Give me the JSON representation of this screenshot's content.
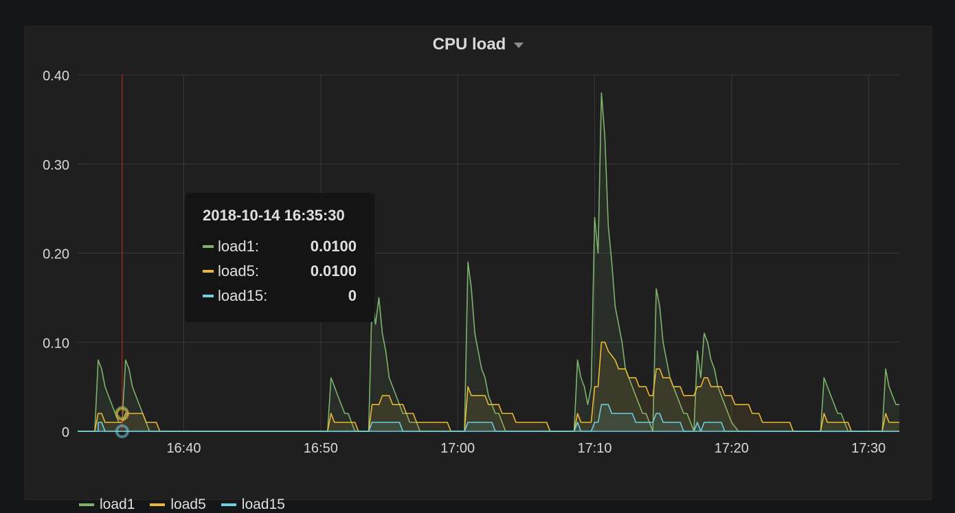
{
  "panel": {
    "title": "CPU load"
  },
  "tooltip": {
    "time": "2018-10-14 16:35:30",
    "rows": [
      {
        "name": "load1:",
        "value": "0.0100",
        "color": "#7eb26d"
      },
      {
        "name": "load5:",
        "value": "0.0100",
        "color": "#eab839"
      },
      {
        "name": "load15:",
        "value": "0",
        "color": "#6ed0e0"
      }
    ]
  },
  "legend": [
    {
      "label": "load1",
      "color": "#7eb26d"
    },
    {
      "label": "load5",
      "color": "#eab839"
    },
    {
      "label": "load15",
      "color": "#6ed0e0"
    }
  ],
  "chart_data": {
    "type": "area",
    "title": "CPU load",
    "xlabel": "",
    "ylabel": "",
    "x_unit": "minutes after 16:00 (2018-10-14)",
    "xlim": [
      32.25,
      92.25
    ],
    "ylim": [
      0,
      0.4
    ],
    "y_ticks": [
      {
        "value": 0,
        "label": "0"
      },
      {
        "value": 0.1,
        "label": "0.10"
      },
      {
        "value": 0.2,
        "label": "0.20"
      },
      {
        "value": 0.3,
        "label": "0.30"
      },
      {
        "value": 0.4,
        "label": "0.40"
      }
    ],
    "x_ticks": [
      {
        "value": 40,
        "label": "16:40"
      },
      {
        "value": 50,
        "label": "16:50"
      },
      {
        "value": 60,
        "label": "17:00"
      },
      {
        "value": 70,
        "label": "17:10"
      },
      {
        "value": 80,
        "label": "17:20"
      },
      {
        "value": 90,
        "label": "17:30"
      }
    ],
    "grid": true,
    "legend_position": "bottom-left",
    "crosshair_x": 35.5,
    "series": [
      {
        "name": "load1",
        "color": "#7eb26d",
        "points": [
          [
            32.25,
            0
          ],
          [
            33.5,
            0
          ],
          [
            33.75,
            0.08
          ],
          [
            34,
            0.07
          ],
          [
            34.25,
            0.05
          ],
          [
            34.5,
            0.04
          ],
          [
            34.75,
            0.03
          ],
          [
            35,
            0.02
          ],
          [
            35.25,
            0.01
          ],
          [
            35.5,
            0.01
          ],
          [
            35.75,
            0.08
          ],
          [
            36,
            0.07
          ],
          [
            36.25,
            0.05
          ],
          [
            36.5,
            0.04
          ],
          [
            36.75,
            0.03
          ],
          [
            37,
            0.02
          ],
          [
            37.25,
            0.01
          ],
          [
            37.5,
            0
          ],
          [
            50.5,
            0
          ],
          [
            50.75,
            0.06
          ],
          [
            51,
            0.05
          ],
          [
            51.25,
            0.04
          ],
          [
            51.5,
            0.03
          ],
          [
            51.75,
            0.02
          ],
          [
            52,
            0.02
          ],
          [
            52.25,
            0.01
          ],
          [
            52.5,
            0
          ],
          [
            53.5,
            0
          ],
          [
            53.75,
            0.15
          ],
          [
            54,
            0.12
          ],
          [
            54.25,
            0.15
          ],
          [
            54.5,
            0.11
          ],
          [
            54.75,
            0.09
          ],
          [
            55,
            0.06
          ],
          [
            55.25,
            0.05
          ],
          [
            55.5,
            0.04
          ],
          [
            55.75,
            0.03
          ],
          [
            56,
            0.02
          ],
          [
            56.25,
            0.02
          ],
          [
            56.5,
            0.01
          ],
          [
            57,
            0.01
          ],
          [
            57.25,
            0
          ],
          [
            60.5,
            0
          ],
          [
            60.75,
            0.19
          ],
          [
            61,
            0.16
          ],
          [
            61.25,
            0.11
          ],
          [
            61.5,
            0.09
          ],
          [
            61.75,
            0.07
          ],
          [
            62,
            0.06
          ],
          [
            62.25,
            0.04
          ],
          [
            62.5,
            0.03
          ],
          [
            62.75,
            0.02
          ],
          [
            63,
            0.02
          ],
          [
            63.25,
            0.01
          ],
          [
            63.5,
            0
          ],
          [
            68.5,
            0
          ],
          [
            68.75,
            0.08
          ],
          [
            69,
            0.06
          ],
          [
            69.25,
            0.05
          ],
          [
            69.5,
            0.03
          ],
          [
            69.75,
            0.05
          ],
          [
            70,
            0.24
          ],
          [
            70.25,
            0.2
          ],
          [
            70.5,
            0.38
          ],
          [
            70.75,
            0.33
          ],
          [
            71,
            0.23
          ],
          [
            71.25,
            0.19
          ],
          [
            71.5,
            0.14
          ],
          [
            71.75,
            0.12
          ],
          [
            72,
            0.1
          ],
          [
            72.25,
            0.07
          ],
          [
            72.5,
            0.06
          ],
          [
            72.75,
            0.05
          ],
          [
            73,
            0.04
          ],
          [
            73.25,
            0.03
          ],
          [
            73.5,
            0.02
          ],
          [
            73.75,
            0.02
          ],
          [
            74,
            0.01
          ],
          [
            74.25,
            0
          ],
          [
            74.5,
            0.16
          ],
          [
            74.75,
            0.14
          ],
          [
            75,
            0.1
          ],
          [
            75.25,
            0.08
          ],
          [
            75.5,
            0.06
          ],
          [
            75.75,
            0.05
          ],
          [
            76,
            0.04
          ],
          [
            76.25,
            0.03
          ],
          [
            76.5,
            0.02
          ],
          [
            76.75,
            0.02
          ],
          [
            77,
            0.01
          ],
          [
            77.25,
            0
          ],
          [
            77.5,
            0.09
          ],
          [
            77.75,
            0.06
          ],
          [
            78,
            0.11
          ],
          [
            78.25,
            0.1
          ],
          [
            78.5,
            0.08
          ],
          [
            78.75,
            0.07
          ],
          [
            79,
            0.05
          ],
          [
            79.25,
            0.04
          ],
          [
            79.5,
            0.03
          ],
          [
            79.75,
            0.02
          ],
          [
            80,
            0.01
          ],
          [
            80.5,
            0
          ],
          [
            86.5,
            0
          ],
          [
            86.75,
            0.06
          ],
          [
            87,
            0.05
          ],
          [
            87.25,
            0.04
          ],
          [
            87.5,
            0.03
          ],
          [
            87.75,
            0.02
          ],
          [
            88,
            0.02
          ],
          [
            88.25,
            0.01
          ],
          [
            88.5,
            0
          ],
          [
            91,
            0
          ],
          [
            91.25,
            0.07
          ],
          [
            91.5,
            0.05
          ],
          [
            91.75,
            0.04
          ],
          [
            92,
            0.03
          ],
          [
            92.25,
            0.03
          ]
        ]
      },
      {
        "name": "load5",
        "color": "#eab839",
        "points": [
          [
            32.25,
            0
          ],
          [
            33.5,
            0
          ],
          [
            33.75,
            0.02
          ],
          [
            34,
            0.02
          ],
          [
            34.25,
            0.01
          ],
          [
            35.25,
            0.01
          ],
          [
            35.5,
            0.01
          ],
          [
            35.75,
            0.02
          ],
          [
            37,
            0.02
          ],
          [
            37.25,
            0.01
          ],
          [
            38,
            0.01
          ],
          [
            38.25,
            0
          ],
          [
            50.5,
            0
          ],
          [
            50.75,
            0.02
          ],
          [
            51,
            0.01
          ],
          [
            52.5,
            0.01
          ],
          [
            52.75,
            0
          ],
          [
            53.5,
            0
          ],
          [
            53.75,
            0.03
          ],
          [
            54.25,
            0.03
          ],
          [
            54.5,
            0.04
          ],
          [
            55,
            0.04
          ],
          [
            55.25,
            0.03
          ],
          [
            56,
            0.03
          ],
          [
            56.25,
            0.02
          ],
          [
            56.75,
            0.02
          ],
          [
            57,
            0.01
          ],
          [
            59.25,
            0.01
          ],
          [
            59.5,
            0
          ],
          [
            60.5,
            0
          ],
          [
            60.75,
            0.05
          ],
          [
            61,
            0.04
          ],
          [
            62,
            0.04
          ],
          [
            62.25,
            0.03
          ],
          [
            63,
            0.03
          ],
          [
            63.25,
            0.02
          ],
          [
            64,
            0.02
          ],
          [
            64.25,
            0.01
          ],
          [
            66.5,
            0.01
          ],
          [
            66.75,
            0
          ],
          [
            68.5,
            0
          ],
          [
            68.75,
            0.02
          ],
          [
            69,
            0.01
          ],
          [
            69.75,
            0.01
          ],
          [
            70,
            0.05
          ],
          [
            70.25,
            0.05
          ],
          [
            70.5,
            0.1
          ],
          [
            70.75,
            0.1
          ],
          [
            71,
            0.09
          ],
          [
            71.5,
            0.08
          ],
          [
            71.75,
            0.07
          ],
          [
            72.25,
            0.07
          ],
          [
            72.5,
            0.06
          ],
          [
            73,
            0.06
          ],
          [
            73.25,
            0.05
          ],
          [
            73.75,
            0.05
          ],
          [
            74,
            0.04
          ],
          [
            74.25,
            0.04
          ],
          [
            74.5,
            0.07
          ],
          [
            74.75,
            0.07
          ],
          [
            75,
            0.06
          ],
          [
            75.5,
            0.06
          ],
          [
            75.75,
            0.05
          ],
          [
            76.25,
            0.05
          ],
          [
            76.5,
            0.04
          ],
          [
            77.25,
            0.04
          ],
          [
            77.5,
            0.05
          ],
          [
            77.75,
            0.05
          ],
          [
            78,
            0.06
          ],
          [
            78.25,
            0.06
          ],
          [
            78.5,
            0.05
          ],
          [
            79.25,
            0.05
          ],
          [
            79.5,
            0.04
          ],
          [
            80,
            0.04
          ],
          [
            80.25,
            0.03
          ],
          [
            81.25,
            0.03
          ],
          [
            81.5,
            0.02
          ],
          [
            82,
            0.02
          ],
          [
            82.25,
            0.01
          ],
          [
            84.25,
            0.01
          ],
          [
            84.5,
            0
          ],
          [
            86.5,
            0
          ],
          [
            86.75,
            0.02
          ],
          [
            87,
            0.01
          ],
          [
            88.5,
            0.01
          ],
          [
            88.75,
            0
          ],
          [
            91,
            0
          ],
          [
            91.25,
            0.02
          ],
          [
            91.5,
            0.01
          ],
          [
            92.25,
            0.01
          ]
        ]
      },
      {
        "name": "load15",
        "color": "#6ed0e0",
        "points": [
          [
            32.25,
            0
          ],
          [
            33.75,
            0
          ],
          [
            33.75,
            0.01
          ],
          [
            34,
            0.01
          ],
          [
            34.25,
            0
          ],
          [
            53.5,
            0
          ],
          [
            53.75,
            0.01
          ],
          [
            55.75,
            0.01
          ],
          [
            56,
            0
          ],
          [
            60.5,
            0
          ],
          [
            60.75,
            0.01
          ],
          [
            62.5,
            0.01
          ],
          [
            62.75,
            0
          ],
          [
            68.5,
            0
          ],
          [
            68.75,
            0.01
          ],
          [
            69,
            0
          ],
          [
            69.75,
            0
          ],
          [
            70,
            0.01
          ],
          [
            70.25,
            0.01
          ],
          [
            70.5,
            0.03
          ],
          [
            71,
            0.03
          ],
          [
            71.25,
            0.02
          ],
          [
            72.75,
            0.02
          ],
          [
            73,
            0.01
          ],
          [
            74.25,
            0.01
          ],
          [
            74.5,
            0.02
          ],
          [
            74.75,
            0.02
          ],
          [
            75,
            0.01
          ],
          [
            76.25,
            0.01
          ],
          [
            76.5,
            0
          ],
          [
            77.25,
            0
          ],
          [
            77.5,
            0.01
          ],
          [
            77.75,
            0
          ],
          [
            78,
            0.01
          ],
          [
            79.25,
            0.01
          ],
          [
            79.5,
            0
          ],
          [
            92.25,
            0
          ]
        ]
      }
    ],
    "hover_points": [
      {
        "series": "load1",
        "x": 35.5,
        "y": 0.01
      },
      {
        "series": "load5",
        "x": 35.5,
        "y": 0.01
      },
      {
        "series": "load15",
        "x": 35.5,
        "y": 0
      }
    ]
  }
}
